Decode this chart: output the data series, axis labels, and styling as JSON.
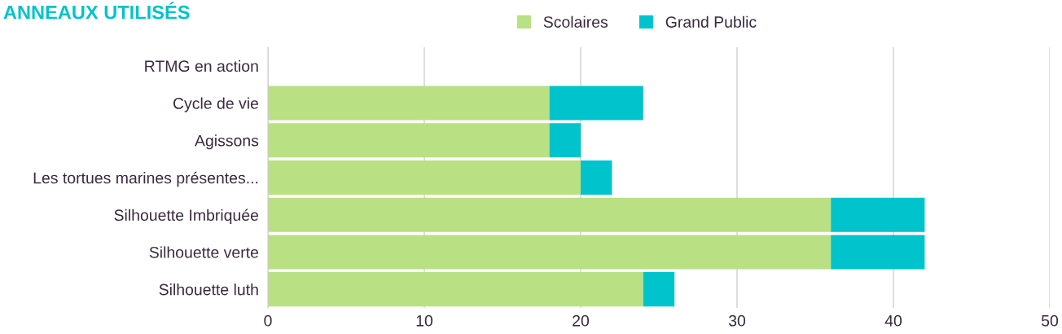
{
  "chart_data": {
    "type": "bar",
    "orientation": "horizontal",
    "stacked": true,
    "title": "ANNEAUX UTILISÉS",
    "categories": [
      "RTMG en action",
      "Cycle de vie",
      "Agissons",
      "Les tortues marines présentes...",
      "Silhouette Imbriquée",
      "Silhouette verte",
      "Silhouette luth"
    ],
    "series": [
      {
        "name": "Scolaires",
        "color": "#b9e083",
        "values": [
          0,
          18,
          18,
          20,
          36,
          36,
          24
        ]
      },
      {
        "name": "Grand Public",
        "color": "#00c3cc",
        "values": [
          0,
          6,
          2,
          2,
          6,
          6,
          2
        ]
      }
    ],
    "xlim": [
      0,
      50
    ],
    "xticks": [
      0,
      10,
      20,
      30,
      40,
      50
    ],
    "grid": "x",
    "legend": "top"
  }
}
